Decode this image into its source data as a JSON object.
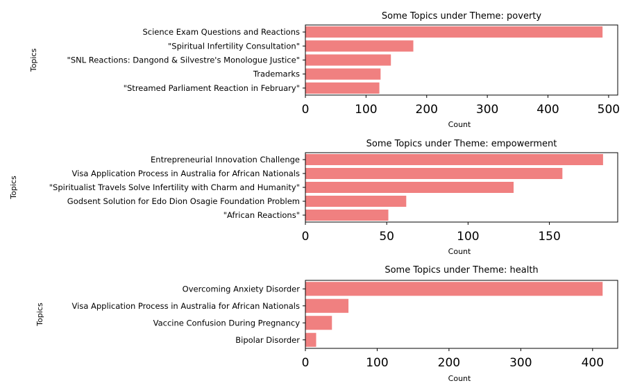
{
  "chart_data": [
    {
      "type": "bar",
      "orientation": "horizontal",
      "title": "Some Topics under Theme: poverty",
      "xlabel": "Count",
      "ylabel": "Topics",
      "categories": [
        "Science Exam Questions and Reactions",
        "\"Spiritual Infertility Consultation\"",
        "\"SNL Reactions: Dangond & Silvestre's Monologue Justice\"",
        "Trademarks",
        "\"Streamed Parliament Reaction in February\""
      ],
      "values": [
        490,
        178,
        141,
        124,
        122
      ],
      "xlim": [
        0,
        515
      ],
      "xticks": [
        0,
        100,
        200,
        300,
        400,
        500
      ],
      "color": "#f08080"
    },
    {
      "type": "bar",
      "orientation": "horizontal",
      "title": "Some Topics under Theme: empowerment",
      "xlabel": "Count",
      "ylabel": "Topics",
      "categories": [
        "Entrepreneurial Innovation Challenge",
        "Visa Application Process in Australia for African Nationals",
        "\"Spiritualist Travels Solve Infertility with Charm and Humanity\"",
        "Godsent Solution for Edo Dion Osagie Foundation Problem",
        "\"African Reactions\""
      ],
      "values": [
        183,
        158,
        128,
        62,
        51
      ],
      "xlim": [
        0,
        192
      ],
      "xticks": [
        0,
        50,
        100,
        150
      ],
      "color": "#f08080"
    },
    {
      "type": "bar",
      "orientation": "horizontal",
      "title": "Some Topics under Theme: health",
      "xlabel": "Count",
      "ylabel": "Topics",
      "categories": [
        "Overcoming Anxiety Disorder",
        "Visa Application Process in Australia for African Nationals",
        "Vaccine Confusion During Pregnancy",
        "Bipolar Disorder"
      ],
      "values": [
        414,
        60,
        37,
        15
      ],
      "xlim": [
        0,
        435
      ],
      "xticks": [
        0,
        100,
        200,
        300,
        400
      ],
      "color": "#f08080"
    }
  ]
}
